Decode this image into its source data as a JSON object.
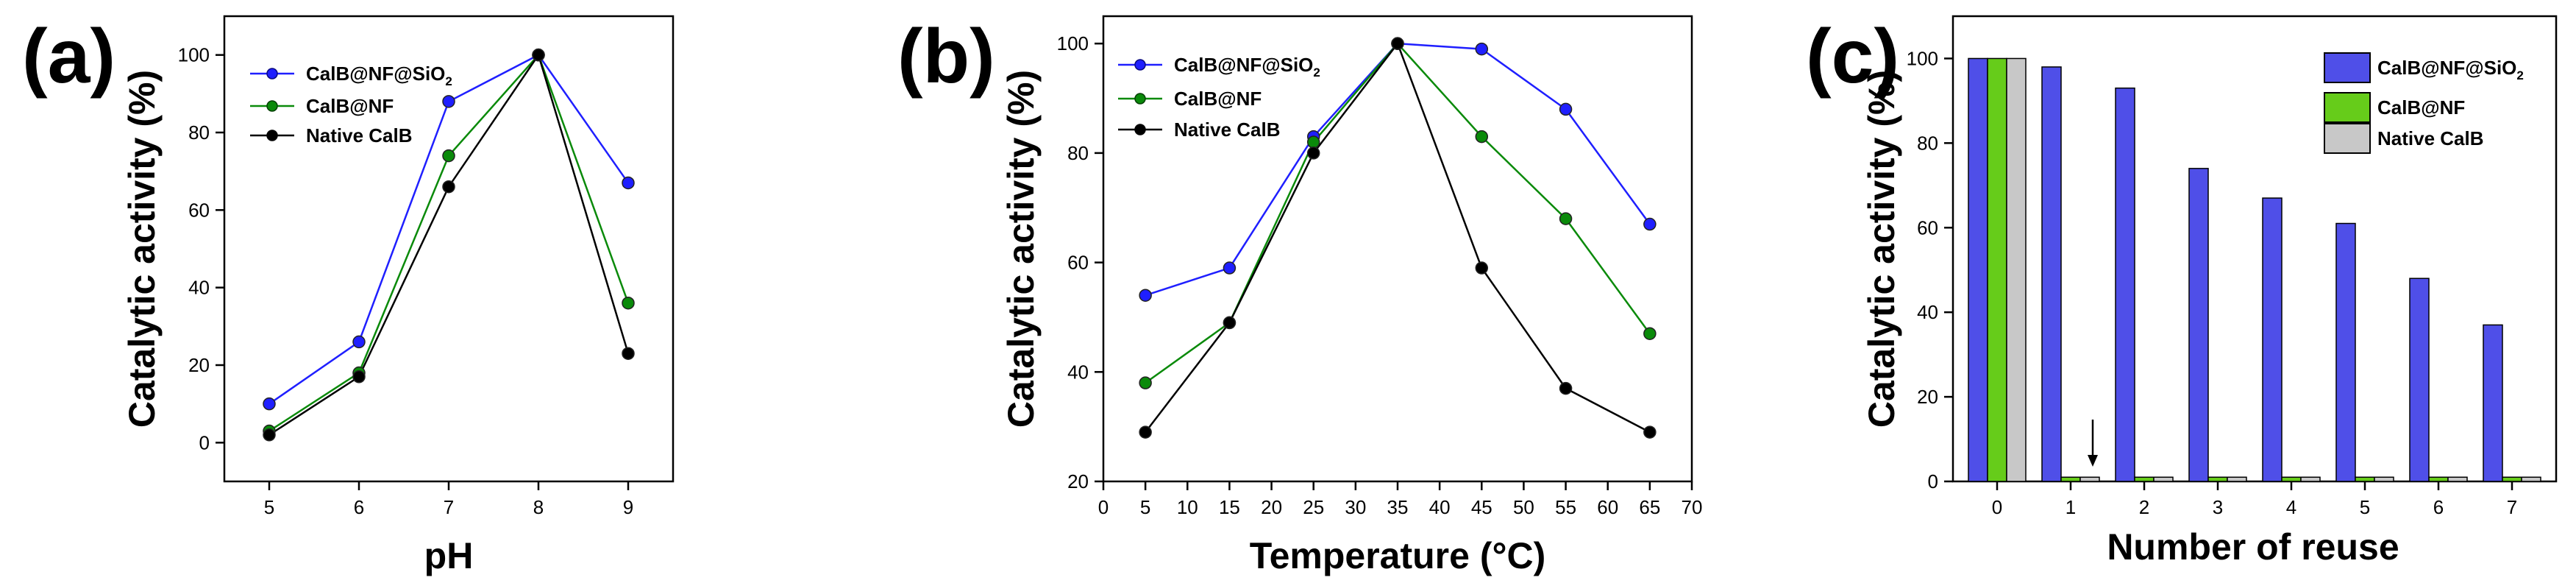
{
  "chart_data": [
    {
      "panel": "(a)",
      "type": "line",
      "xlabel": "pH",
      "ylabel": "Catalytic activity (%)",
      "x": [
        5,
        6,
        7,
        8,
        9
      ],
      "xlim": [
        4.5,
        9.5
      ],
      "ylim": [
        -10,
        110
      ],
      "xticks": [
        5,
        6,
        7,
        8,
        9
      ],
      "yticks": [
        0,
        20,
        40,
        60,
        80,
        100
      ],
      "legend_position": "top-left",
      "series": [
        {
          "name": "CalB@NF@SiO",
          "sub": "2",
          "color": "#1f1fff",
          "values": [
            10,
            26,
            88,
            100,
            67
          ]
        },
        {
          "name": "CalB@NF",
          "sub": "",
          "color": "#0a8a0a",
          "values": [
            3,
            18,
            74,
            100,
            36
          ]
        },
        {
          "name": "Native CalB",
          "sub": "",
          "color": "#000000",
          "values": [
            2,
            17,
            66,
            100,
            23
          ]
        }
      ]
    },
    {
      "panel": "(b)",
      "type": "line",
      "xlabel": "Temperature (°C)",
      "ylabel": "Catalytic activity (%)",
      "x": [
        5,
        15,
        25,
        35,
        45,
        55,
        65
      ],
      "xlim": [
        0,
        70
      ],
      "ylim": [
        20,
        105
      ],
      "xticks": [
        0,
        5,
        10,
        15,
        20,
        25,
        30,
        35,
        40,
        45,
        50,
        55,
        60,
        65,
        70
      ],
      "yticks": [
        20,
        40,
        60,
        80,
        100
      ],
      "legend_position": "top-left",
      "series": [
        {
          "name": "CalB@NF@SiO",
          "sub": "2",
          "color": "#1f1fff",
          "values": [
            54,
            59,
            83,
            100,
            99,
            88,
            67
          ]
        },
        {
          "name": "CalB@NF",
          "sub": "",
          "color": "#0a8a0a",
          "values": [
            38,
            49,
            82,
            100,
            83,
            68,
            47
          ]
        },
        {
          "name": "Native CalB",
          "sub": "",
          "color": "#000000",
          "values": [
            29,
            49,
            80,
            100,
            59,
            37,
            29
          ]
        }
      ]
    },
    {
      "panel": "(c)",
      "type": "bar",
      "xlabel": "Number of reuse",
      "ylabel": "Catalytic activity (%)",
      "categories": [
        "0",
        "1",
        "2",
        "3",
        "4",
        "5",
        "6",
        "7"
      ],
      "ylim": [
        0,
        110
      ],
      "yticks": [
        0,
        20,
        40,
        60,
        80,
        100
      ],
      "legend_position": "top-right",
      "annotation": "arrow above reuse 1",
      "series": [
        {
          "name": "CalB@NF@SiO",
          "sub": "2",
          "color": "#4f4fe8",
          "values": [
            100,
            98,
            93,
            74,
            67,
            61,
            48,
            37
          ]
        },
        {
          "name": "CalB@NF",
          "sub": "",
          "color": "#66cc1a",
          "values": [
            100,
            1,
            1,
            1,
            1,
            1,
            1,
            1
          ]
        },
        {
          "name": "Native CalB",
          "sub": "",
          "color": "#c8c8c8",
          "values": [
            100,
            1,
            1,
            1,
            1,
            1,
            1,
            1
          ]
        }
      ]
    }
  ]
}
